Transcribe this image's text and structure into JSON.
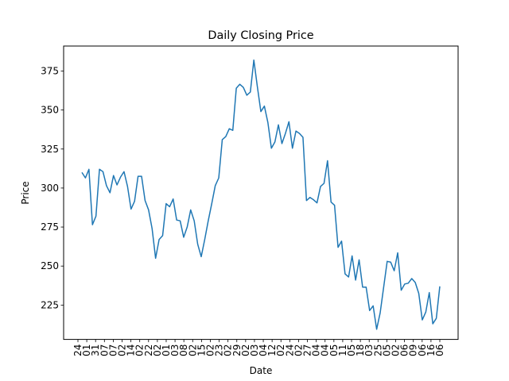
{
  "chart_data": {
    "type": "line",
    "title": "Daily Closing Price",
    "xlabel": "Date",
    "ylabel": "Price",
    "ylim": [
      203,
      391
    ],
    "yticks": [
      225,
      250,
      275,
      300,
      325,
      350,
      375
    ],
    "grid": false,
    "legend": "none",
    "x_tick_labels": [
      "24",
      "01",
      "31",
      "07",
      "07",
      "02",
      "14",
      "02",
      "22",
      "02",
      "01",
      "03",
      "08",
      "02",
      "15",
      "02",
      "23",
      "02",
      "29",
      "02",
      "03",
      "04",
      "12",
      "02",
      "24",
      "02",
      "27",
      "04",
      "04",
      "05",
      "11",
      "05",
      "18",
      "03",
      "25",
      "05",
      "02",
      "06",
      "09",
      "06",
      "16",
      "06"
    ],
    "series": [
      {
        "color": "#1f77b4",
        "values": [
          310,
          306.5,
          312,
          276.5,
          282,
          312,
          310.5,
          301.5,
          297,
          308,
          302,
          307,
          310.5,
          301,
          286.5,
          291.5,
          307.5,
          307.5,
          292,
          286,
          274,
          255,
          267,
          269.5,
          290,
          288,
          293,
          279.5,
          279,
          268.5,
          275,
          286,
          279,
          264,
          256,
          267,
          279,
          290,
          301.5,
          306.5,
          331,
          333,
          338,
          337,
          364,
          366.5,
          364.5,
          359.5,
          361.5,
          382,
          365,
          349,
          352.5,
          342,
          325.5,
          329.5,
          340.5,
          328.5,
          335,
          342.5,
          325.5,
          336.5,
          335,
          332.5,
          292,
          294,
          292.5,
          290.5,
          301,
          303,
          317.5,
          291,
          289,
          262,
          266,
          245,
          243,
          256.5,
          241,
          254,
          236.5,
          236.5,
          221.5,
          224.5,
          209.5,
          220,
          236.5,
          253,
          252.5,
          247,
          258.5,
          234.5,
          238.5,
          239,
          242,
          239.5,
          232.5,
          215.5,
          220.5,
          233,
          213,
          216.5,
          237
        ]
      }
    ]
  }
}
